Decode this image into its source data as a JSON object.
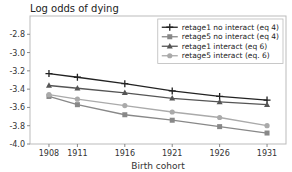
{
  "chart_data": {
    "type": "line",
    "title": "Log odds of dying",
    "xlabel": "Birth cohort",
    "x": [
      1908,
      1911,
      1916,
      1921,
      1926,
      1931
    ],
    "series": [
      {
        "name": "retage1 no interact (eq 4)",
        "color": "#222222",
        "marker": "plus",
        "values": [
          -3.23,
          -3.27,
          -3.34,
          -3.42,
          -3.48,
          -3.52
        ]
      },
      {
        "name": "retage5 no interact (eq 4)",
        "color": "#888888",
        "marker": "square",
        "values": [
          -3.48,
          -3.57,
          -3.68,
          -3.74,
          -3.81,
          -3.88
        ]
      },
      {
        "name": "retage1 interact (eq 6)",
        "color": "#555555",
        "marker": "triangle",
        "values": [
          -3.36,
          -3.39,
          -3.44,
          -3.5,
          -3.54,
          -3.57
        ]
      },
      {
        "name": "retage5 interact (eq. 6)",
        "color": "#aaaaaa",
        "marker": "circle",
        "values": [
          -3.46,
          -3.51,
          -3.58,
          -3.65,
          -3.71,
          -3.8
        ]
      }
    ],
    "xlim": [
      1906,
      1933
    ],
    "xticks": [
      1908,
      1911,
      1916,
      1921,
      1926,
      1931
    ],
    "ylim": [
      -4.0,
      -2.6
    ],
    "yticks": [
      {
        "value": -4.0,
        "label": "-4.0"
      },
      -3.8,
      -3.6,
      -3.4,
      -3.2,
      {
        "value": -3.0,
        "label": "-3.0"
      },
      -2.8
    ],
    "grid": false,
    "legend": "upper right"
  }
}
